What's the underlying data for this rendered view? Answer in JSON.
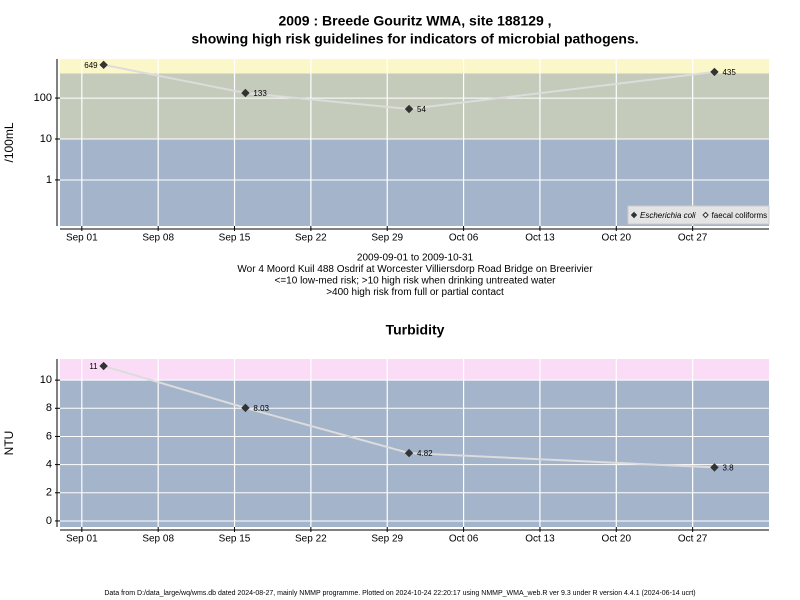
{
  "chart_data": [
    {
      "type": "line",
      "title": [
        "2009 : Breede Gouritz WMA, site 188129 ,",
        "showing high risk guidelines for indicators of microbial pathogens."
      ],
      "ylabel": "/100mL",
      "notes": [
        "2009-09-01 to 2009-10-31",
        "Wor 4 Moord Kuil 488 Osdrif at Worcester Villiersdorp Road Bridge on Breerivier",
        "<=10 low-med risk; >10 high risk when drinking untreated water",
        ">400 high risk from full or partial contact"
      ],
      "x": [
        "Sep 03",
        "Sep 16",
        "Oct 01",
        "Oct 29"
      ],
      "xlim": [
        "Aug 30",
        "Nov 03"
      ],
      "xticks": [
        "Sep 01",
        "Sep 08",
        "Sep 15",
        "Sep 22",
        "Sep 29",
        "Oct 06",
        "Oct 13",
        "Oct 20",
        "Oct 27"
      ],
      "log_scale": true,
      "ylim": [
        0.075,
        900
      ],
      "yticks": [
        1,
        10,
        100
      ],
      "thresholds": [
        10,
        400
      ],
      "band_colors": [
        "#a3b4cb",
        "#c4cbbb",
        "#fbf7c9"
      ],
      "grid": true,
      "legend": "bottom-right",
      "line_color": "#dcdcdc",
      "series": [
        {
          "name": "Escherichia coli",
          "color": "#333333",
          "marker": "filled",
          "values": [
            649,
            133,
            54,
            435
          ]
        },
        {
          "name": "faecal coliforms",
          "color": "#333333",
          "marker": "open",
          "values": [
            null,
            null,
            null,
            null
          ]
        }
      ]
    },
    {
      "type": "line",
      "title": [
        "Turbidity"
      ],
      "ylabel": "NTU",
      "x": [
        "Sep 03",
        "Sep 16",
        "Oct 01",
        "Oct 29"
      ],
      "xlim": [
        "Aug 30",
        "Nov 03"
      ],
      "xticks": [
        "Sep 01",
        "Sep 08",
        "Sep 15",
        "Sep 22",
        "Sep 29",
        "Oct 06",
        "Oct 13",
        "Oct 20",
        "Oct 27"
      ],
      "log_scale": false,
      "ylim": [
        -0.43,
        11.5
      ],
      "yticks": [
        0,
        2,
        4,
        6,
        8,
        10
      ],
      "thresholds": [
        10
      ],
      "band_colors": [
        "#a3b4cb",
        "#fbdcf6"
      ],
      "grid": true,
      "line_color": "#dcdcdc",
      "series": [
        {
          "color": "#333333",
          "marker": "filled",
          "values": [
            11,
            8.03,
            4.82,
            3.8
          ]
        }
      ]
    }
  ],
  "footer": "Data from D:/data_large/wq/wms.db dated 2024-08-27, mainly NMMP programme. Plotted on 2024-10-24 22:20:17 using NMMP_WMA_web.R ver 9.3 under R version 4.4.1 (2024-06-14 ucrt)"
}
